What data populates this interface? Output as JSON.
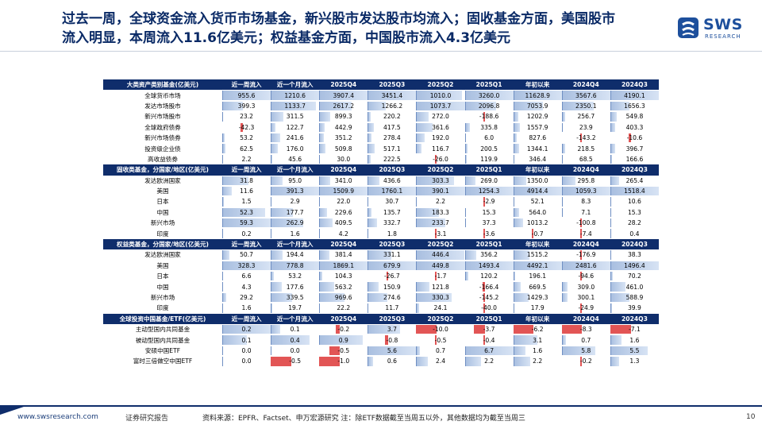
{
  "title": {
    "line1": "过去一周，全球资金流入货币市场基金，新兴股市发达股市均流入；固收基金方面，美国股市",
    "line2": "流入明显，本周流入11.6亿美元；权益基金方面，中国股市流入4.3亿美元"
  },
  "logo": {
    "text": "SWS",
    "sub": "RESEARCH"
  },
  "colors": {
    "header_bg": "#0f2d6b",
    "positive_bar": "#a9bfe0",
    "negative_bar": "#e25555",
    "title": "#0a2a66"
  },
  "columns": [
    "近一周流入",
    "近一个月流入",
    "2025Q4",
    "2025Q3",
    "2025Q2",
    "2025Q1",
    "年初以来",
    "2024Q4",
    "2024Q3"
  ],
  "sections": [
    {
      "header": "大类资产类别基金(亿美元)",
      "rows": [
        {
          "name": "全球货币市场",
          "values": [
            955.6,
            1210.6,
            3907.4,
            3451.4,
            1010.0,
            3260.0,
            11628.9,
            3567.6,
            4190.1
          ]
        },
        {
          "name": "发达市场股市",
          "values": [
            399.3,
            1133.7,
            2617.2,
            1266.2,
            1073.7,
            2096.8,
            7053.9,
            2350.1,
            1656.3
          ]
        },
        {
          "name": "新兴市场股市",
          "values": [
            23.2,
            311.5,
            899.3,
            220.2,
            272.0,
            -188.6,
            1202.9,
            256.7,
            549.8
          ]
        },
        {
          "name": "全球政府债券",
          "values": [
            -42.3,
            122.7,
            442.9,
            417.5,
            361.6,
            335.8,
            1557.9,
            23.9,
            403.3
          ]
        },
        {
          "name": "新兴市场债券",
          "values": [
            53.2,
            241.6,
            351.2,
            278.4,
            192.0,
            6.0,
            827.6,
            -143.2,
            -10.6
          ]
        },
        {
          "name": "投资级企业债",
          "values": [
            62.5,
            176.0,
            509.8,
            517.1,
            116.7,
            200.5,
            1344.1,
            218.5,
            396.7
          ]
        },
        {
          "name": "高收益债券",
          "values": [
            2.2,
            45.6,
            30.0,
            222.5,
            -26.0,
            119.9,
            346.4,
            68.5,
            166.6
          ]
        }
      ]
    },
    {
      "header": "固收类基金，分国家/地区(亿美元)",
      "rows": [
        {
          "name": "发达欧洲国家",
          "values": [
            31.8,
            95.0,
            341.0,
            436.6,
            303.3,
            269.0,
            1350.0,
            295.8,
            265.4
          ]
        },
        {
          "name": "美国",
          "values": [
            11.6,
            391.3,
            1509.9,
            1760.1,
            390.1,
            1254.3,
            4914.4,
            1059.3,
            1518.4
          ]
        },
        {
          "name": "日本",
          "values": [
            1.5,
            2.9,
            22.0,
            30.7,
            2.2,
            -2.9,
            52.1,
            8.3,
            10.6
          ]
        },
        {
          "name": "中国",
          "values": [
            52.3,
            177.7,
            229.6,
            135.7,
            183.3,
            15.3,
            564.0,
            7.1,
            15.3
          ]
        },
        {
          "name": "新兴市场",
          "values": [
            59.3,
            262.9,
            409.5,
            332.7,
            233.7,
            37.3,
            1013.2,
            -100.8,
            28.2
          ]
        },
        {
          "name": "印度",
          "values": [
            0.2,
            1.6,
            4.2,
            1.8,
            -3.1,
            -3.6,
            -0.7,
            -7.4,
            0.4
          ]
        }
      ]
    },
    {
      "header": "权益类基金，分国家/地区(亿美元)",
      "rows": [
        {
          "name": "发达欧洲国家",
          "values": [
            50.7,
            194.4,
            381.4,
            331.1,
            446.4,
            356.2,
            1515.2,
            -176.9,
            38.3
          ]
        },
        {
          "name": "美国",
          "values": [
            328.3,
            778.8,
            1869.1,
            679.9,
            449.8,
            1493.4,
            4492.1,
            2481.6,
            1496.4
          ]
        },
        {
          "name": "日本",
          "values": [
            6.6,
            53.2,
            104.3,
            -26.7,
            -1.7,
            120.2,
            196.1,
            -94.6,
            70.2
          ]
        },
        {
          "name": "中国",
          "values": [
            4.3,
            177.6,
            563.2,
            150.9,
            121.8,
            -166.4,
            669.5,
            309.0,
            461.0
          ]
        },
        {
          "name": "新兴市场",
          "values": [
            29.2,
            339.5,
            969.6,
            274.6,
            330.3,
            -145.2,
            1429.3,
            300.1,
            588.9
          ]
        },
        {
          "name": "印度",
          "values": [
            1.6,
            19.7,
            22.2,
            11.7,
            24.1,
            -40.0,
            17.9,
            -24.9,
            39.9
          ]
        }
      ]
    },
    {
      "header": "全球投资中国基金/ETF(亿美元)",
      "rows": [
        {
          "name": "主动型国内共同基金",
          "values": [
            0.2,
            0.1,
            -0.2,
            3.7,
            -10.0,
            -3.7,
            -6.2,
            -8.3,
            -7.1
          ]
        },
        {
          "name": "被动型国内共同基金",
          "values": [
            0.1,
            0.4,
            0.9,
            -0.8,
            -0.5,
            -0.4,
            3.1,
            0.7,
            1.6
          ]
        },
        {
          "name": "安硕中国ETF",
          "values": [
            0.0,
            0.0,
            -0.5,
            5.6,
            0.7,
            6.7,
            1.6,
            5.8,
            5.5
          ]
        },
        {
          "name": "富时三倍做空中国ETF",
          "values": [
            0.0,
            -0.5,
            -1.0,
            0.6,
            2.4,
            2.2,
            2.2,
            -0.2,
            1.3
          ]
        }
      ]
    }
  ],
  "footer": {
    "site": "www.swsresearch.com",
    "type": "证券研究报告",
    "source": "资料来源：EPFR、Factset、申万宏源研究 注：除ETF数据截至当周五以外，其他数据均为截至当周三",
    "page": "10"
  }
}
